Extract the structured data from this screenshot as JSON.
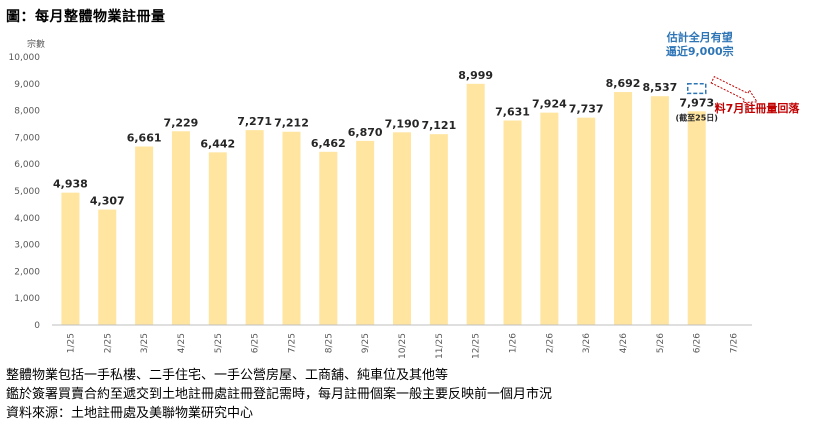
{
  "title": "圖：每月整體物業註冊量",
  "chart_data": {
    "type": "bar",
    "ylabel": "宗數",
    "ylim": [
      0,
      10000
    ],
    "ytick_step": 1000,
    "categories": [
      "1/25",
      "2/25",
      "3/25",
      "4/25",
      "5/25",
      "6/25",
      "7/25",
      "8/25",
      "9/25",
      "10/25",
      "11/25",
      "12/25",
      "1/26",
      "2/26",
      "3/26",
      "4/26",
      "5/26",
      "6/26",
      "7/26"
    ],
    "values": [
      4938,
      4307,
      6661,
      7229,
      6442,
      7271,
      7212,
      6462,
      6870,
      7190,
      7121,
      8999,
      7631,
      7924,
      7737,
      8692,
      8537,
      7973,
      null
    ],
    "value_labels": [
      "4,938",
      "4,307",
      "6,661",
      "7,229",
      "6,442",
      "7,271",
      "7,212",
      "6,462",
      "6,870",
      "7,190",
      "7,121",
      "8,999",
      "7,631",
      "7,924",
      "7,737",
      "8,692",
      "8,537",
      "7,973",
      ""
    ],
    "bar_color": "#FFE5A0",
    "grid": false,
    "annotations": {
      "partial_note": "(截至25日)",
      "estimate_line1": "估計全月有望",
      "estimate_line2": "逼近9,000宗",
      "estimate_value": 9000,
      "estimate_color": "#2E75B6",
      "forecast_text": "料7月註冊量回落",
      "forecast_color": "#C00000"
    }
  },
  "notes": [
    "整體物業包括一手私樓、二手住宅、一手公營房屋、工商舖、純車位及其他等",
    "鑑於簽署買賣合約至遞交到土地註冊處註冊登記需時，每月註冊個案一般主要反映前一個月市況",
    "資料來源：土地註冊處及美聯物業研究中心"
  ]
}
